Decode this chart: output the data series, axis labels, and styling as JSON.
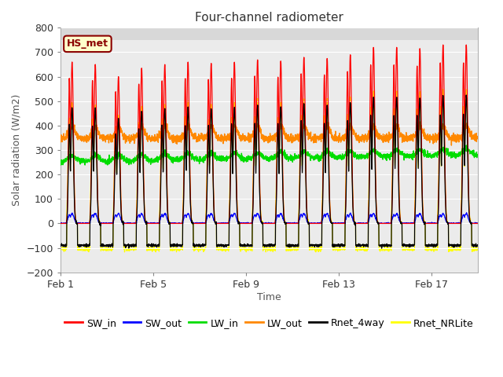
{
  "title": "Four-channel radiometer",
  "xlabel": "Time",
  "ylabel": "Solar radiation (W/m2)",
  "ylim": [
    -200,
    800
  ],
  "yticks": [
    -200,
    -100,
    0,
    100,
    200,
    300,
    400,
    500,
    600,
    700,
    800
  ],
  "xtick_labels": [
    "Feb 1",
    "Feb 5",
    "Feb 9",
    "Feb 13",
    "Feb 17"
  ],
  "xtick_positions": [
    0,
    4,
    8,
    12,
    16
  ],
  "n_days": 18,
  "plot_bg_color": "#ebebeb",
  "upper_band_color": "#d8d8d8",
  "colors": {
    "SW_in": "#ff0000",
    "SW_out": "#0000ff",
    "LW_in": "#00dd00",
    "LW_out": "#ff8800",
    "Rnet_4way": "#000000",
    "Rnet_NRLite": "#ffff00"
  },
  "legend_entries": [
    "SW_in",
    "SW_out",
    "LW_in",
    "LW_out",
    "Rnet_4way",
    "Rnet_NRLite"
  ],
  "station_label": "HS_met",
  "station_box_facecolor": "#ffffcc",
  "station_box_edgecolor": "#8b0000"
}
